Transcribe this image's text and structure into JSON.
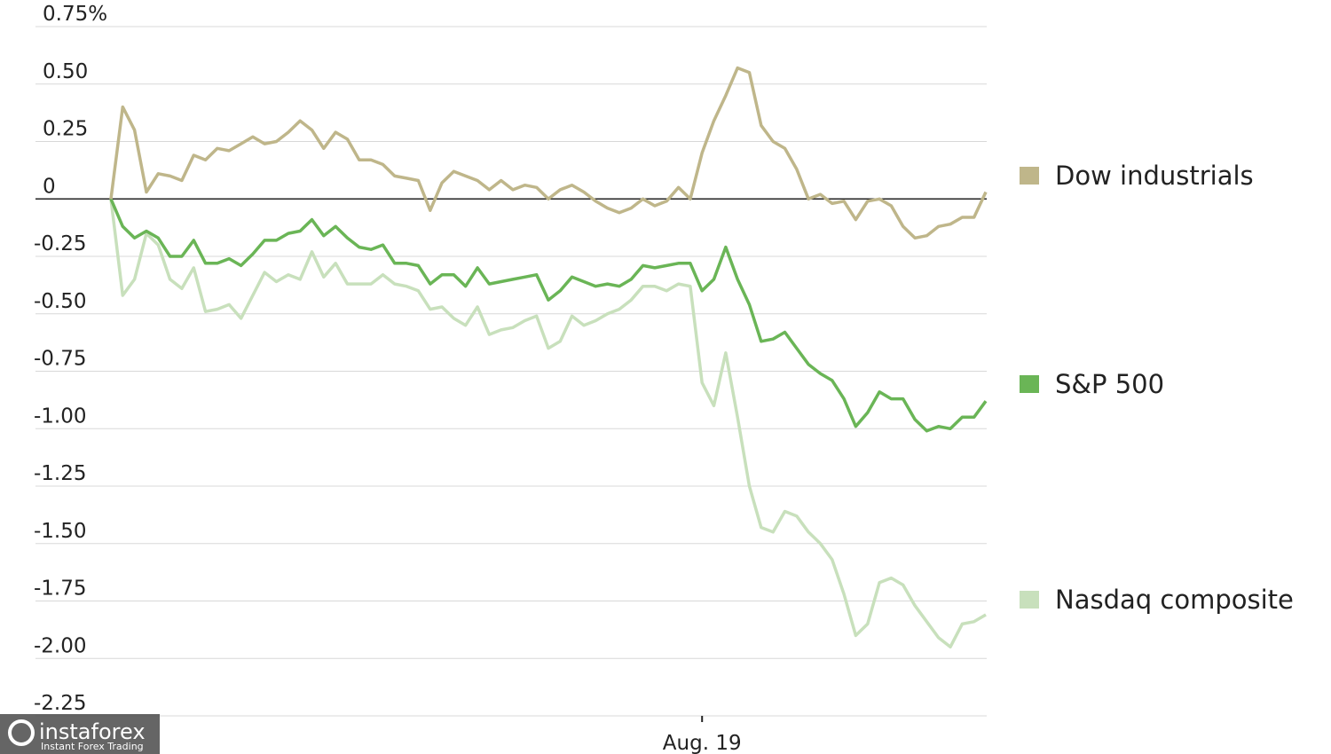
{
  "chart_data": {
    "type": "line",
    "categories": [
      null,
      null,
      null,
      null,
      null,
      null,
      null,
      null,
      null,
      null,
      null,
      null,
      null,
      null,
      null,
      null,
      null,
      null,
      null,
      null,
      null,
      null,
      null,
      null,
      null,
      null,
      null,
      null,
      null,
      null,
      null,
      null,
      null,
      null,
      null,
      null,
      null,
      null,
      null,
      null,
      null,
      null,
      null,
      null,
      null,
      null,
      null,
      null,
      null,
      null,
      "Aug. 19",
      null,
      null,
      null,
      null,
      null,
      null,
      null,
      null,
      null,
      null,
      null,
      null,
      null,
      null,
      null,
      null,
      null,
      null,
      null,
      null,
      null,
      null,
      null,
      null
    ],
    "series": [
      {
        "name": "Dow industrials",
        "color": "#bfb68a",
        "values": [
          0.0,
          0.4,
          0.3,
          0.03,
          0.11,
          0.1,
          0.08,
          0.19,
          0.17,
          0.22,
          0.21,
          0.24,
          0.27,
          0.24,
          0.25,
          0.29,
          0.34,
          0.3,
          0.22,
          0.29,
          0.26,
          0.17,
          0.17,
          0.15,
          0.1,
          0.09,
          0.08,
          -0.05,
          0.07,
          0.12,
          0.1,
          0.08,
          0.04,
          0.08,
          0.04,
          0.06,
          0.05,
          0.0,
          0.04,
          0.06,
          0.03,
          -0.01,
          -0.04,
          -0.06,
          -0.04,
          0.0,
          -0.03,
          -0.01,
          0.05,
          0.0,
          0.2,
          0.34,
          0.45,
          0.57,
          0.55,
          0.32,
          0.25,
          0.22,
          0.13,
          0.0,
          0.02,
          -0.02,
          -0.01,
          -0.09,
          -0.01,
          0.0,
          -0.03,
          -0.12,
          -0.17,
          -0.16,
          -0.12,
          -0.11,
          -0.08,
          -0.08,
          0.03
        ]
      },
      {
        "name": "S&P 500",
        "color": "#6ab556",
        "values": [
          0.0,
          -0.12,
          -0.17,
          -0.14,
          -0.17,
          -0.25,
          -0.25,
          -0.18,
          -0.28,
          -0.28,
          -0.26,
          -0.29,
          -0.24,
          -0.18,
          -0.18,
          -0.15,
          -0.14,
          -0.09,
          -0.16,
          -0.12,
          -0.17,
          -0.21,
          -0.22,
          -0.2,
          -0.28,
          -0.28,
          -0.29,
          -0.37,
          -0.33,
          -0.33,
          -0.38,
          -0.3,
          -0.37,
          -0.36,
          -0.35,
          -0.34,
          -0.33,
          -0.44,
          -0.4,
          -0.34,
          -0.36,
          -0.38,
          -0.37,
          -0.38,
          -0.35,
          -0.29,
          -0.3,
          -0.29,
          -0.28,
          -0.28,
          -0.4,
          -0.35,
          -0.21,
          -0.35,
          -0.46,
          -0.62,
          -0.61,
          -0.58,
          -0.65,
          -0.72,
          -0.76,
          -0.79,
          -0.87,
          -0.99,
          -0.93,
          -0.84,
          -0.87,
          -0.87,
          -0.96,
          -1.01,
          -0.99,
          -1.0,
          -0.95,
          -0.95,
          -0.88
        ]
      },
      {
        "name": "Nasdaq composite",
        "color": "#c8e0bc",
        "values": [
          0.0,
          -0.42,
          -0.35,
          -0.15,
          -0.2,
          -0.35,
          -0.39,
          -0.3,
          -0.49,
          -0.48,
          -0.46,
          -0.52,
          -0.42,
          -0.32,
          -0.36,
          -0.33,
          -0.35,
          -0.23,
          -0.34,
          -0.28,
          -0.37,
          -0.37,
          -0.37,
          -0.33,
          -0.37,
          -0.38,
          -0.4,
          -0.48,
          -0.47,
          -0.52,
          -0.55,
          -0.47,
          -0.59,
          -0.57,
          -0.56,
          -0.53,
          -0.51,
          -0.65,
          -0.62,
          -0.51,
          -0.55,
          -0.53,
          -0.5,
          -0.48,
          -0.44,
          -0.38,
          -0.38,
          -0.4,
          -0.37,
          -0.38,
          -0.8,
          -0.9,
          -0.67,
          -0.95,
          -1.25,
          -1.43,
          -1.45,
          -1.36,
          -1.38,
          -1.45,
          -1.5,
          -1.57,
          -1.72,
          -1.9,
          -1.85,
          -1.67,
          -1.65,
          -1.68,
          -1.77,
          -1.84,
          -1.91,
          -1.95,
          -1.85,
          -1.84,
          -1.81
        ]
      }
    ],
    "ylim": [
      -2.25,
      0.75
    ],
    "yticks": [
      {
        "value": 0.75,
        "label": "0.75%"
      },
      {
        "value": 0.5,
        "label": "0.50"
      },
      0.25,
      0,
      -0.25,
      {
        "value": -0.5,
        "label": "-0.50"
      },
      -0.75,
      {
        "value": -1,
        "label": "-1.00"
      },
      -1.25,
      {
        "value": -1.5,
        "label": "-1.50"
      },
      -1.75,
      {
        "value": -2,
        "label": "-2.00"
      },
      -2.25
    ],
    "grid": true,
    "legend": "right"
  },
  "watermark": {
    "brand": "instaforex",
    "tagline": "Instant Forex Trading"
  }
}
